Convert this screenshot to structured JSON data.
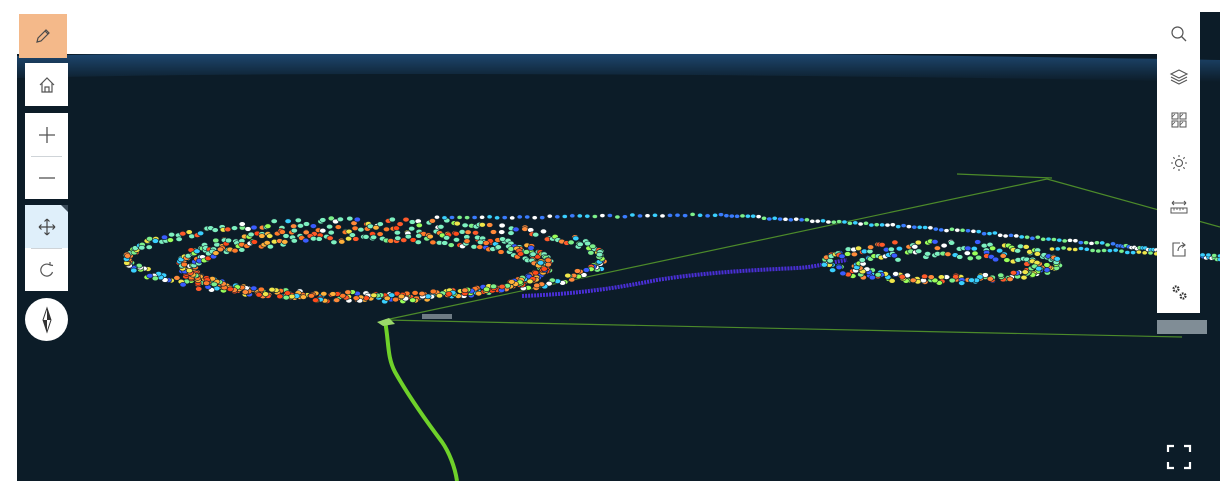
{
  "toolbar": {
    "draw_tool": {
      "icon": "pencil-icon",
      "active": true,
      "accent": "#f4b98a"
    },
    "home": {
      "icon": "home-icon"
    },
    "zoom_in": {
      "icon": "plus-icon"
    },
    "zoom_out": {
      "icon": "minus-icon"
    },
    "pan": {
      "icon": "move-arrows-icon",
      "active": true
    },
    "rotate": {
      "icon": "rotate-icon"
    },
    "compass": {
      "icon": "compass-icon"
    }
  },
  "right_panel": {
    "items": [
      {
        "icon": "search-icon"
      },
      {
        "icon": "layers-icon"
      },
      {
        "icon": "basemap-gallery-icon"
      },
      {
        "icon": "daylight-icon"
      },
      {
        "icon": "measure-icon"
      },
      {
        "icon": "share-icon"
      },
      {
        "icon": "settings-icon"
      }
    ]
  },
  "fullscreen": {
    "icon": "fullscreen-icon"
  },
  "colors": {
    "scene_background": "#0c1c28",
    "sky_band": "#1c3d63",
    "track_green": "#6fd12a",
    "grid_line": "#4c8a2a",
    "track_purple": "#4a2fd6"
  }
}
